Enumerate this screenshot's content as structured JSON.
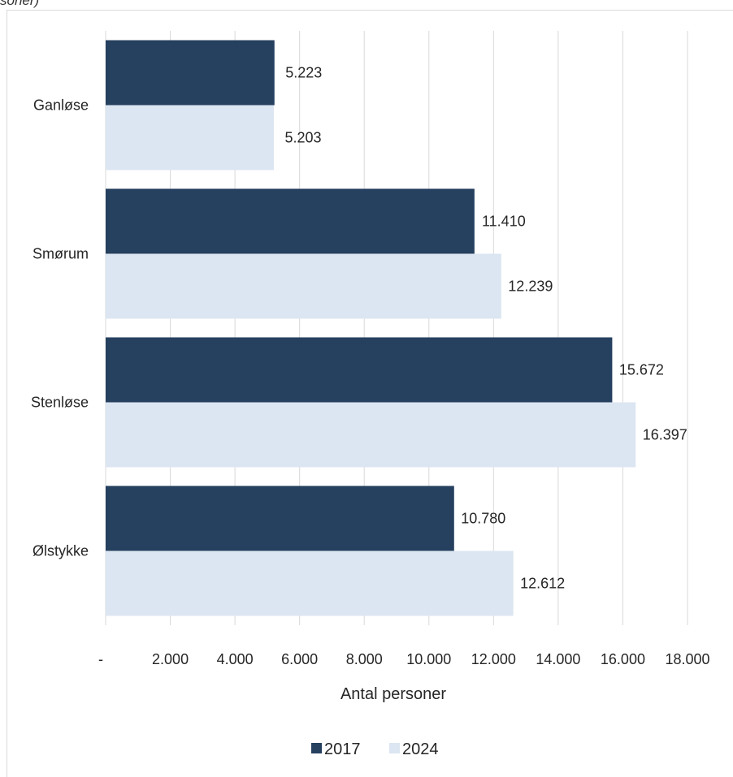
{
  "caption": "soner)",
  "colors": {
    "series_2017": "#26405f",
    "series_2024": "#dce6f2",
    "grid": "#d9d9d9",
    "text": "#262626"
  },
  "chart_data": {
    "type": "bar",
    "orientation": "horizontal",
    "categories": [
      "Ganløse",
      "Smørum",
      "Stenløse",
      "Ølstykke"
    ],
    "series": [
      {
        "name": "2017",
        "values": [
          5223,
          11410,
          15672,
          10780
        ],
        "labels": [
          "5.223",
          "11.410",
          "15.672",
          "10.780"
        ]
      },
      {
        "name": "2024",
        "values": [
          5203,
          12239,
          16397,
          12612
        ],
        "labels": [
          "5.203",
          "12.239",
          "16.397",
          "12.612"
        ]
      }
    ],
    "xlabel": "Antal personer",
    "xlim": [
      0,
      18000
    ],
    "xticks": [
      0,
      2000,
      4000,
      6000,
      8000,
      10000,
      12000,
      14000,
      16000,
      18000
    ],
    "xtick_labels": [
      "-",
      "2.000",
      "4.000",
      "6.000",
      "8.000",
      "10.000",
      "12.000",
      "14.000",
      "16.000",
      "18.000"
    ],
    "grid": true,
    "legend": "bottom"
  }
}
